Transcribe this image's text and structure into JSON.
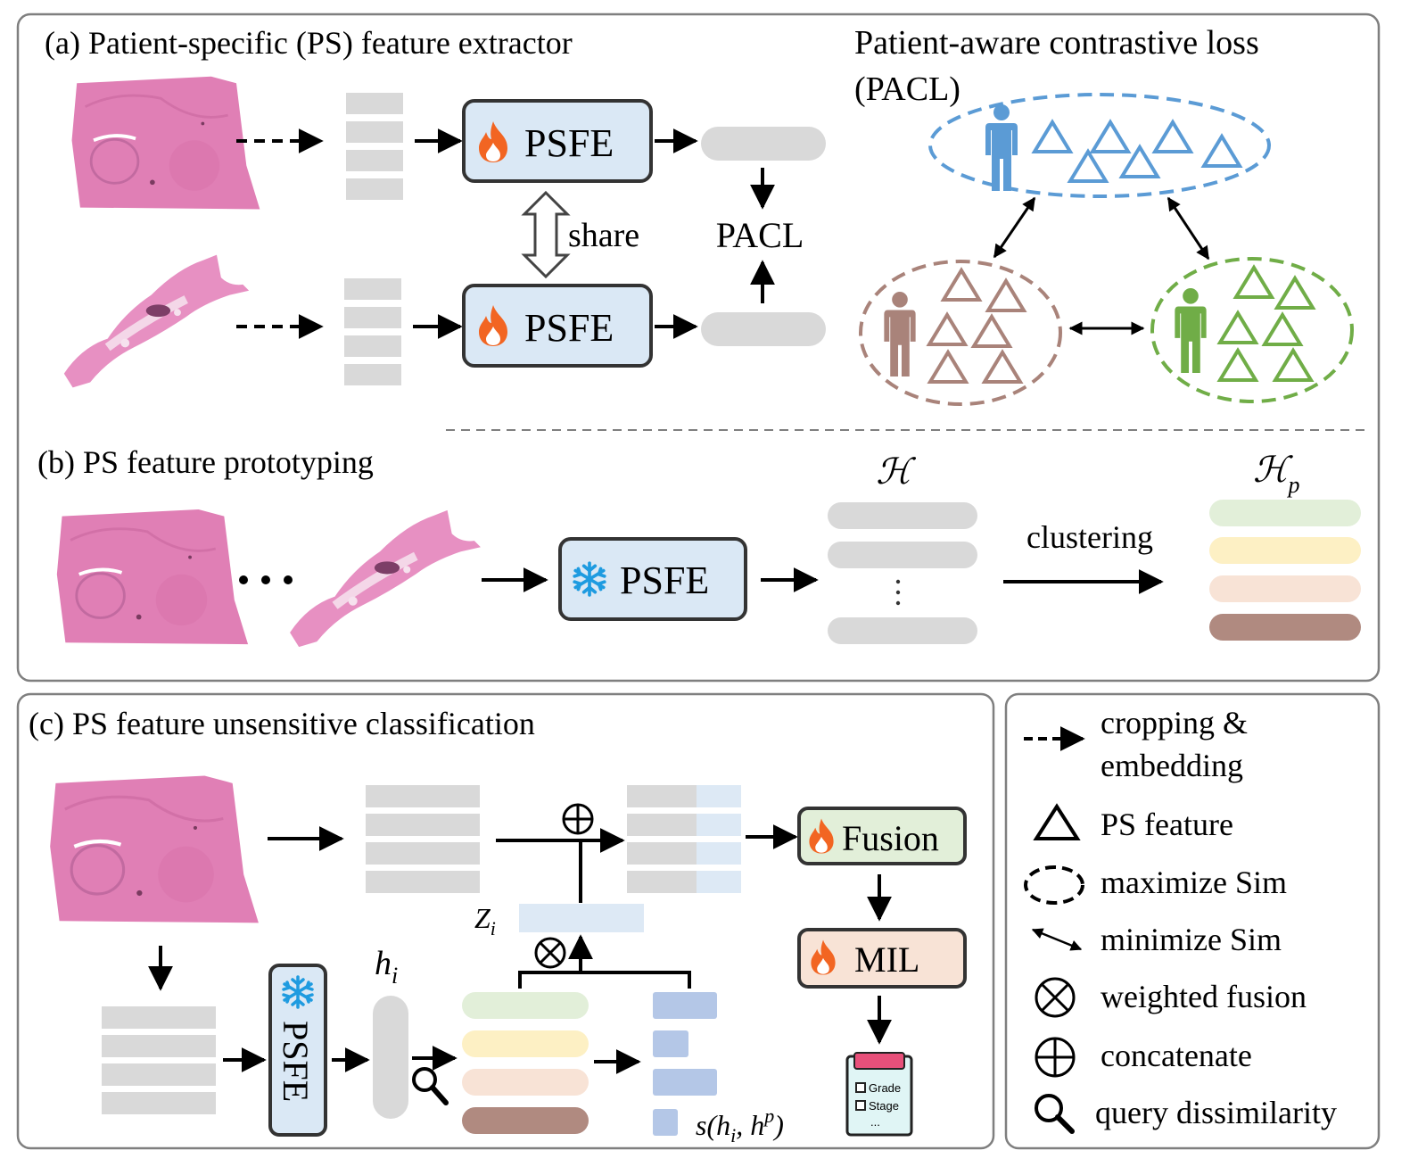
{
  "panel_a": {
    "title": "(a) Patient-specific (PS) feature extractor",
    "psfe_top": "PSFE",
    "psfe_bottom": "PSFE",
    "share_label": "share",
    "pacl_label": "PACL",
    "loss_title_line1": "Patient-aware contrastive loss",
    "loss_title_line2": "(PACL)",
    "colors": {
      "blue": "#5b9bd5",
      "brown": "#a9837a",
      "green": "#70ad47"
    }
  },
  "panel_b": {
    "title": "(b) PS feature prototyping",
    "psfe": "PSFE",
    "h_label": "ℋ",
    "hp_label": "ℋ",
    "hp_sub": "p",
    "clustering_label": "clustering",
    "prototype_colors": [
      "#e2efd9",
      "#fdf0c4",
      "#f8e3d6",
      "#b08a80"
    ]
  },
  "panel_c": {
    "title": "(c) PS feature unsensitive classification",
    "psfe": "PSFE",
    "fusion": "Fusion",
    "mil": "MIL",
    "hi_main": "h",
    "hi_sub": "i",
    "zi_main": "Z",
    "zi_sub": "i",
    "score_label": "s(h",
    "score_sub": "i",
    "score_mid": ", h",
    "score_sup": "p",
    "score_end": ")",
    "report_items": [
      "Grade",
      "Stage",
      "..."
    ]
  },
  "legend": {
    "items": [
      {
        "icon": "dashed-arrow-icon",
        "lines": [
          "cropping &",
          "embedding"
        ]
      },
      {
        "icon": "triangle-icon",
        "lines": [
          "PS feature"
        ]
      },
      {
        "icon": "dashed-ellipse-icon",
        "lines": [
          "maximize Sim"
        ]
      },
      {
        "icon": "double-arrow-icon",
        "lines": [
          "minimize Sim"
        ]
      },
      {
        "icon": "circle-times-icon",
        "lines": [
          "weighted fusion"
        ]
      },
      {
        "icon": "circle-plus-icon",
        "lines": [
          "concatenate"
        ]
      },
      {
        "icon": "magnifier-icon",
        "lines": [
          "query dissimilarity"
        ]
      }
    ]
  },
  "colors": {
    "psfe_box": "#dae8f5",
    "fusion_box": "#e2efd9",
    "mil_box": "#f8e3d6",
    "gray_bar": "#d9d9d9",
    "light_blue_bar": "#dde9f5",
    "score_bar": "#b4c7e7",
    "tissue": "#e07fb5"
  }
}
